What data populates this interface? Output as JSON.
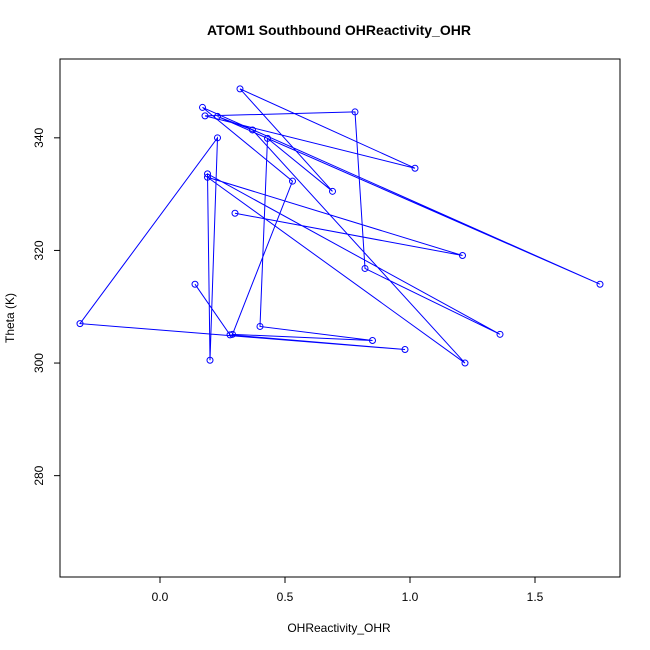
{
  "chart_data": {
    "type": "line",
    "title": "ATOM1 Southbound OHReactivity_OHR",
    "xlabel": "OHReactivity_OHR",
    "ylabel": "Theta (K)",
    "xlim": [
      -0.4,
      1.84
    ],
    "ylim": [
      262,
      354
    ],
    "xticks": [
      0.0,
      0.5,
      1.0,
      1.5
    ],
    "xtick_labels": [
      "0.0",
      "0.5",
      "1.0",
      "1.5"
    ],
    "yticks": [
      280,
      300,
      320,
      340
    ],
    "ytick_labels": [
      "280",
      "300",
      "320",
      "340"
    ],
    "grid": false,
    "series": [
      {
        "color": "#0000ff",
        "marker": "open-circle",
        "x": [
          0.14,
          0.28,
          0.98,
          -0.32,
          0.23,
          0.2,
          0.19,
          1.36,
          0.82,
          0.78,
          0.18,
          1.02,
          0.32,
          0.69,
          0.43,
          0.4,
          0.85,
          0.29,
          0.53,
          0.17,
          1.76,
          0.23,
          0.37,
          1.22,
          0.19,
          1.21,
          0.3
        ],
        "y": [
          314.0,
          305.0,
          302.4,
          307.0,
          340.0,
          300.5,
          333.6,
          305.1,
          316.8,
          344.6,
          343.9,
          334.6,
          348.7,
          330.5,
          339.9,
          306.5,
          304.0,
          305.1,
          332.3,
          345.4,
          314.0,
          343.8,
          341.4,
          300.0,
          333.0,
          319.1,
          326.6
        ]
      }
    ]
  }
}
